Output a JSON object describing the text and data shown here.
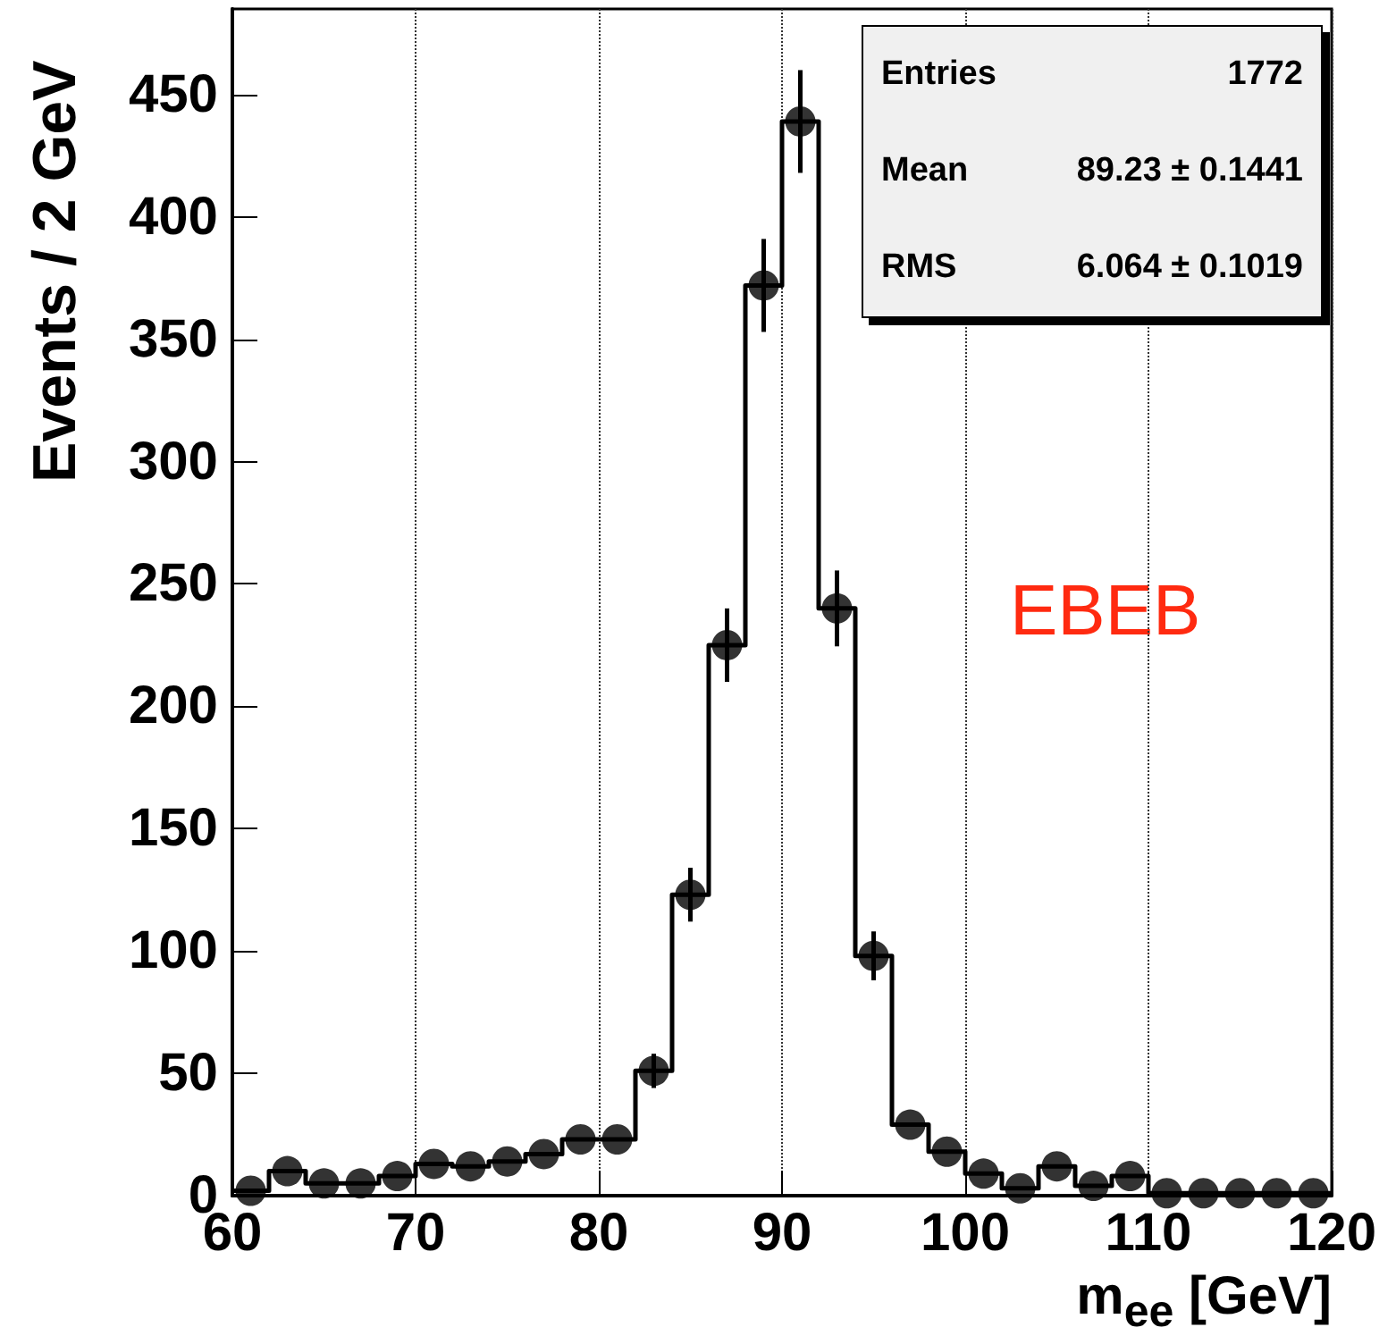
{
  "chart_data": {
    "type": "histogram",
    "xlabel": "m$_{ee}$ [GeV]",
    "ylabel": "Events / 2 GeV",
    "bins": [
      60,
      62,
      64,
      66,
      68,
      70,
      72,
      74,
      76,
      78,
      80,
      82,
      84,
      86,
      88,
      90,
      92,
      94,
      96,
      98,
      100,
      102,
      104,
      106,
      108,
      110,
      112,
      114,
      116,
      118,
      120
    ],
    "series": [
      {
        "color": "#000000",
        "values": [
          2,
          10,
          5,
          5,
          8,
          13,
          12,
          14,
          17,
          23,
          23,
          51,
          123,
          225,
          372,
          439,
          240,
          98,
          29,
          18,
          9,
          3,
          12,
          4,
          8,
          1,
          1,
          1,
          1,
          1
        ]
      },
      {
        "type": "scatter",
        "color": "#000000",
        "marker": "circle",
        "x": [
          61,
          63,
          65,
          67,
          69,
          71,
          73,
          75,
          77,
          79,
          81,
          83,
          85,
          87,
          89,
          91,
          93,
          95,
          97,
          99,
          101,
          103,
          105,
          107,
          109,
          111,
          113,
          115,
          117,
          119
        ],
        "values": [
          2,
          10,
          5,
          5,
          8,
          13,
          12,
          14,
          17,
          23,
          23,
          51,
          123,
          225,
          372,
          439,
          240,
          98,
          29,
          18,
          9,
          3,
          12,
          4,
          8,
          1,
          1,
          1,
          1,
          1
        ],
        "errors": [
          null,
          null,
          null,
          null,
          null,
          null,
          null,
          null,
          null,
          null,
          null,
          7,
          11,
          15,
          19,
          21,
          15.5,
          10,
          null,
          null,
          null,
          null,
          null,
          null,
          null,
          null,
          null,
          null,
          null,
          null
        ]
      }
    ],
    "xlim": [
      60,
      120
    ],
    "xticks": [
      60,
      70,
      80,
      90,
      100,
      110,
      120
    ],
    "ylim": [
      0,
      485
    ],
    "yticks": [
      0,
      50,
      100,
      150,
      200,
      250,
      300,
      350,
      400,
      450
    ],
    "grid": "x",
    "annotations": [
      "Entries",
      "1772",
      "Mean",
      "89.23 ± 0.1441",
      "RMS",
      "6.064 ± 0.1019",
      "EBEB"
    ]
  }
}
